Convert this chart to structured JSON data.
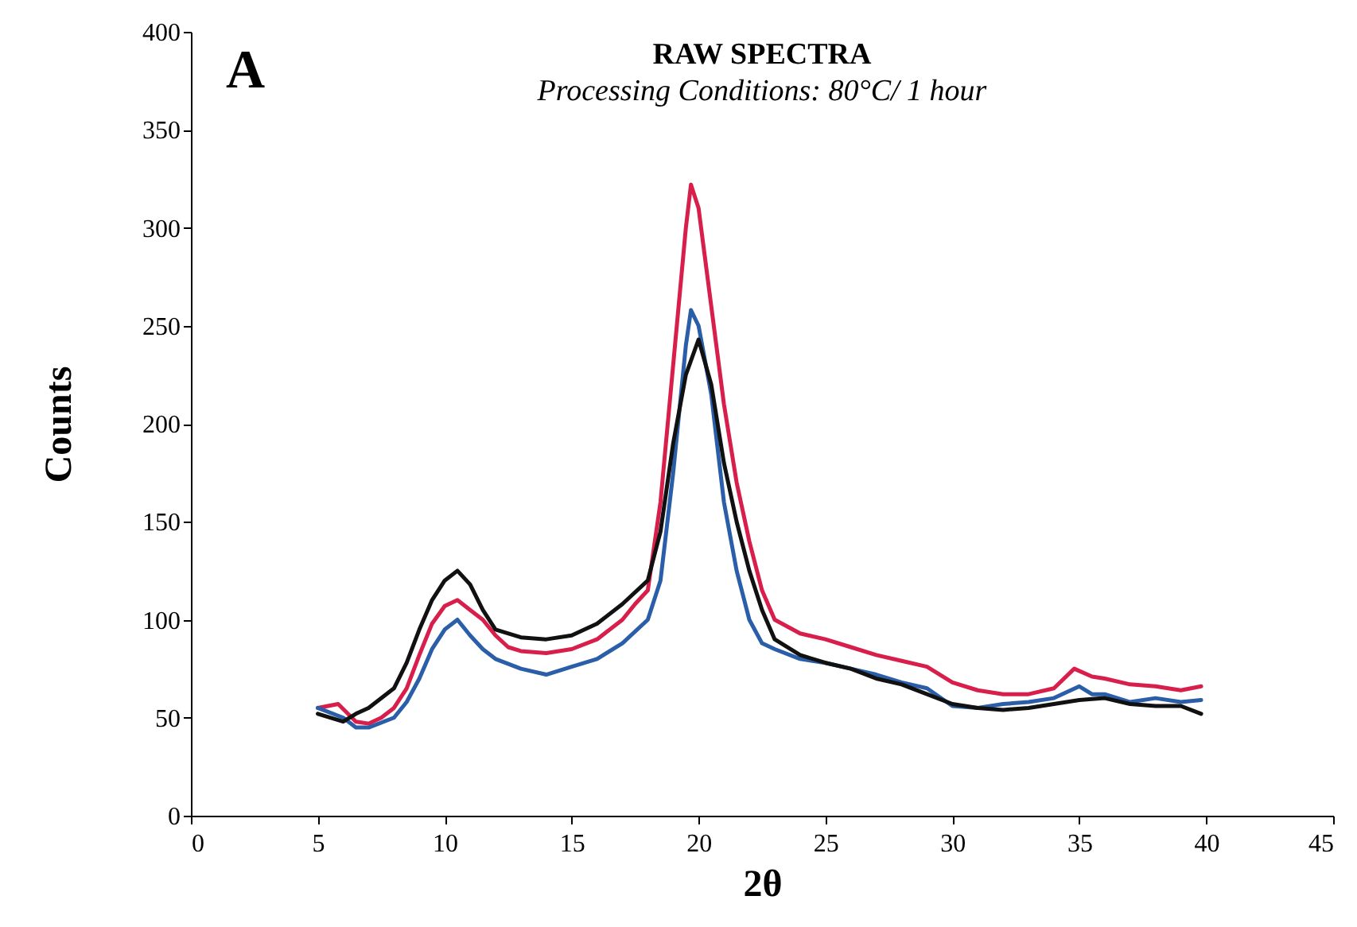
{
  "chart_data": {
    "type": "line",
    "title": "RAW SPECTRA",
    "subtitle": "Processing Conditions: 80°C/ 1 hour",
    "xlabel": "2θ",
    "ylabel": "Counts",
    "annotations": [
      "A"
    ],
    "xlim": [
      0,
      45
    ],
    "xticks": [
      0,
      5,
      10,
      15,
      20,
      25,
      30,
      35,
      40,
      45
    ],
    "ylim": [
      0,
      400
    ],
    "yticks": [
      0,
      50,
      100,
      150,
      200,
      250,
      300,
      350,
      400
    ],
    "grid": false,
    "legend": false,
    "line_style": "solid",
    "marker": "none",
    "series": [
      {
        "color": "#d81e4a",
        "x": [
          5,
          5.8,
          6.5,
          7,
          7.5,
          8,
          8.5,
          9,
          9.5,
          10,
          10.5,
          11,
          11.5,
          12,
          12.5,
          13,
          14,
          15,
          16,
          17,
          17.5,
          18,
          18.5,
          19,
          19.5,
          19.7,
          20,
          20.5,
          21,
          21.5,
          22,
          22.5,
          23,
          24,
          25,
          26,
          27,
          28,
          29,
          30,
          31,
          32,
          33,
          34,
          34.8,
          35.5,
          36,
          37,
          38,
          39,
          39.8
        ],
        "values": [
          55,
          57,
          48,
          47,
          50,
          55,
          65,
          82,
          98,
          107,
          110,
          105,
          100,
          92,
          86,
          84,
          83,
          85,
          90,
          100,
          108,
          115,
          160,
          230,
          300,
          322,
          310,
          260,
          210,
          170,
          140,
          115,
          100,
          93,
          90,
          86,
          82,
          79,
          76,
          68,
          64,
          62,
          62,
          65,
          75,
          71,
          70,
          67,
          66,
          64,
          66
        ]
      },
      {
        "color": "#2a5ea8",
        "x": [
          5,
          6,
          6.5,
          7,
          8,
          8.5,
          9,
          9.5,
          10,
          10.5,
          11,
          11.5,
          12,
          13,
          14,
          15,
          16,
          17,
          18,
          18.5,
          19,
          19.5,
          19.7,
          20,
          20.5,
          21,
          21.5,
          22,
          22.5,
          23,
          24,
          25,
          26,
          27,
          28,
          29,
          30,
          31,
          32,
          33,
          34,
          35,
          35.5,
          36,
          37,
          38,
          39,
          39.8
        ],
        "values": [
          55,
          50,
          45,
          45,
          50,
          58,
          70,
          85,
          95,
          100,
          92,
          85,
          80,
          75,
          72,
          76,
          80,
          88,
          100,
          120,
          175,
          240,
          258,
          250,
          215,
          160,
          125,
          100,
          88,
          85,
          80,
          78,
          75,
          72,
          68,
          65,
          56,
          55,
          57,
          58,
          60,
          66,
          62,
          62,
          58,
          60,
          58,
          59
        ]
      },
      {
        "color": "#111111",
        "x": [
          5,
          6,
          6.5,
          7,
          8,
          8.5,
          9,
          9.5,
          10,
          10.5,
          11,
          11.5,
          12,
          13,
          14,
          15,
          16,
          17,
          18,
          18.5,
          19,
          19.5,
          20,
          20.5,
          21,
          21.5,
          22,
          22.5,
          23,
          24,
          25,
          26,
          27,
          28,
          29,
          30,
          31,
          32,
          33,
          34,
          35,
          36,
          37,
          38,
          39,
          39.8
        ],
        "values": [
          52,
          48,
          52,
          55,
          65,
          78,
          95,
          110,
          120,
          125,
          118,
          105,
          95,
          91,
          90,
          92,
          98,
          108,
          120,
          145,
          190,
          225,
          243,
          220,
          180,
          150,
          125,
          105,
          90,
          82,
          78,
          75,
          70,
          67,
          62,
          57,
          55,
          54,
          55,
          57,
          59,
          60,
          57,
          56,
          56,
          52
        ]
      }
    ]
  }
}
